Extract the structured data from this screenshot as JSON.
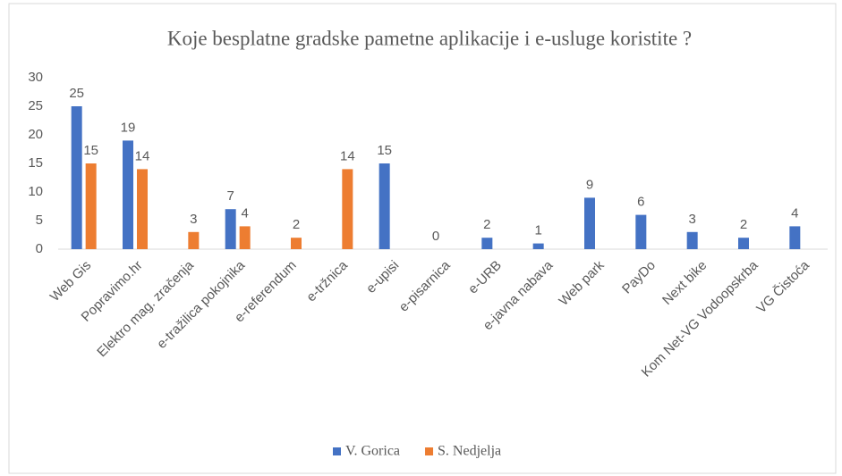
{
  "chart_data": {
    "type": "bar",
    "title": "Koje besplatne gradske pametne aplikacije  i e-usluge koristite ?",
    "categories": [
      "Web Gis",
      "Popravimo.hr",
      "Elektro mag. zračenja",
      "e-tražilica pokojnika",
      "e-referendum",
      "e-tržnica",
      "e-upisi",
      "e-pisarnica",
      "e-URB",
      "e-javna nabava",
      "Web park",
      "PayDo",
      "Next bike",
      "Kom Net-VG Vodoopskrba",
      "VG Čistoća"
    ],
    "series": [
      {
        "name": "V. Gorica",
        "color": "#4472c4",
        "values": [
          25,
          19,
          null,
          7,
          null,
          null,
          15,
          0,
          2,
          1,
          9,
          6,
          3,
          2,
          4
        ]
      },
      {
        "name": "S. Nedjelja",
        "color": "#ed7d31",
        "values": [
          15,
          14,
          3,
          4,
          2,
          14,
          null,
          null,
          null,
          null,
          null,
          null,
          null,
          null,
          null
        ]
      }
    ],
    "ylim": [
      0,
      30
    ],
    "yticks": [
      0,
      5,
      10,
      15,
      20,
      25,
      30
    ],
    "grid": false,
    "legend": "bottom"
  }
}
